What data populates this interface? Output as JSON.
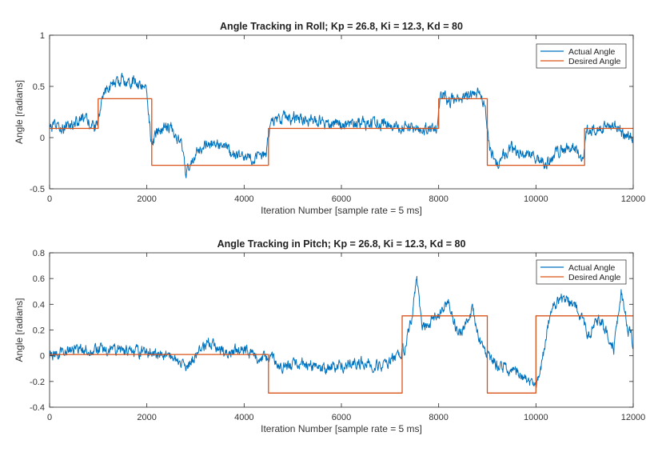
{
  "chart_data": [
    {
      "type": "line",
      "title": "Angle Tracking in Roll; Kp = 26.8, Ki = 12.3, Kd = 80",
      "xlabel": "Iteration Number [sample rate = 5 ms]",
      "ylabel": "Angle [radians]",
      "xlim": [
        0,
        12000
      ],
      "ylim": [
        -0.5,
        1
      ],
      "xticks": [
        0,
        2000,
        4000,
        6000,
        8000,
        10000,
        12000
      ],
      "xtick_labels": [
        "0",
        "2000",
        "4000",
        "6000",
        "8000",
        "10000",
        "12000"
      ],
      "yticks": [
        -0.5,
        0,
        0.5,
        1
      ],
      "ytick_labels": [
        "-0.5",
        "0",
        "0.5",
        "1"
      ],
      "grid": false,
      "legend": "top-right",
      "series": [
        {
          "name": "Actual Angle",
          "color": "#0072bd",
          "noise": 0.045,
          "x": [
            0,
            300,
            700,
            950,
            1050,
            1200,
            1500,
            1800,
            2000,
            2100,
            2200,
            2500,
            2700,
            2800,
            3000,
            3300,
            3600,
            3900,
            4200,
            4450,
            4550,
            4800,
            5200,
            5600,
            6000,
            6400,
            6800,
            7200,
            7600,
            7950,
            8050,
            8200,
            8500,
            8800,
            8950,
            9050,
            9200,
            9500,
            9800,
            10000,
            10200,
            10500,
            10800,
            10950,
            11050,
            11300,
            11600,
            11800,
            12000
          ],
          "y": [
            0.1,
            0.1,
            0.18,
            0.1,
            0.3,
            0.5,
            0.56,
            0.55,
            0.45,
            -0.1,
            0.05,
            0.1,
            -0.05,
            -0.35,
            -0.15,
            -0.05,
            -0.1,
            -0.2,
            -0.2,
            -0.15,
            0.15,
            0.2,
            0.18,
            0.15,
            0.12,
            0.15,
            0.13,
            0.1,
            0.08,
            0.1,
            0.45,
            0.35,
            0.38,
            0.45,
            0.3,
            -0.1,
            -0.25,
            -0.1,
            -0.15,
            -0.2,
            -0.25,
            -0.12,
            -0.1,
            -0.2,
            0.05,
            0.1,
            0.12,
            0.02,
            0.0
          ]
        },
        {
          "name": "Desired Angle",
          "color": "#d95319",
          "step": true,
          "x": [
            0,
            1000,
            2100,
            4500,
            8000,
            9000,
            11000,
            12000
          ],
          "y": [
            0.09,
            0.38,
            -0.27,
            0.09,
            0.38,
            -0.27,
            0.09,
            0.09
          ]
        }
      ]
    },
    {
      "type": "line",
      "title": "Angle Tracking in Pitch; Kp = 26.8, Ki = 12.3, Kd = 80",
      "xlabel": "Iteration Number [sample rate = 5 ms]",
      "ylabel": "Angle [radians]",
      "xlim": [
        0,
        12000
      ],
      "ylim": [
        -0.4,
        0.8
      ],
      "xticks": [
        0,
        2000,
        4000,
        6000,
        8000,
        10000,
        12000
      ],
      "xtick_labels": [
        "0",
        "2000",
        "4000",
        "6000",
        "8000",
        "10000",
        "12000"
      ],
      "yticks": [
        -0.4,
        -0.2,
        0,
        0.2,
        0.4,
        0.6,
        0.8
      ],
      "ytick_labels": [
        "-0.4",
        "-0.2",
        "0",
        "0.2",
        "0.4",
        "0.6",
        "0.8"
      ],
      "grid": false,
      "legend": "top-right",
      "series": [
        {
          "name": "Actual Angle",
          "color": "#0072bd",
          "noise": 0.035,
          "x": [
            0,
            500,
            1000,
            1500,
            2000,
            2500,
            2800,
            3000,
            3300,
            3600,
            4000,
            4300,
            4500,
            4800,
            5200,
            5600,
            6000,
            6400,
            6800,
            7100,
            7300,
            7450,
            7550,
            7650,
            7900,
            8200,
            8400,
            8700,
            8900,
            9100,
            9400,
            9700,
            10000,
            10100,
            10300,
            10500,
            10800,
            11100,
            11300,
            11600,
            11750,
            11900,
            12000
          ],
          "y": [
            0.0,
            0.05,
            0.05,
            0.04,
            0.03,
            0.0,
            -0.1,
            0.0,
            0.12,
            0.02,
            0.05,
            -0.02,
            0.0,
            -0.1,
            -0.05,
            -0.1,
            -0.08,
            -0.05,
            -0.08,
            -0.02,
            0.05,
            0.3,
            0.6,
            0.2,
            0.3,
            0.4,
            0.15,
            0.35,
            0.05,
            -0.05,
            -0.1,
            -0.15,
            -0.25,
            -0.1,
            0.35,
            0.45,
            0.4,
            0.15,
            0.3,
            0.05,
            0.5,
            0.2,
            0.1
          ]
        },
        {
          "name": "Desired Angle",
          "color": "#d95319",
          "step": true,
          "x": [
            0,
            4500,
            7250,
            9000,
            10000,
            12000
          ],
          "y": [
            0.01,
            -0.29,
            0.31,
            -0.29,
            0.31,
            0.31
          ]
        }
      ]
    }
  ]
}
